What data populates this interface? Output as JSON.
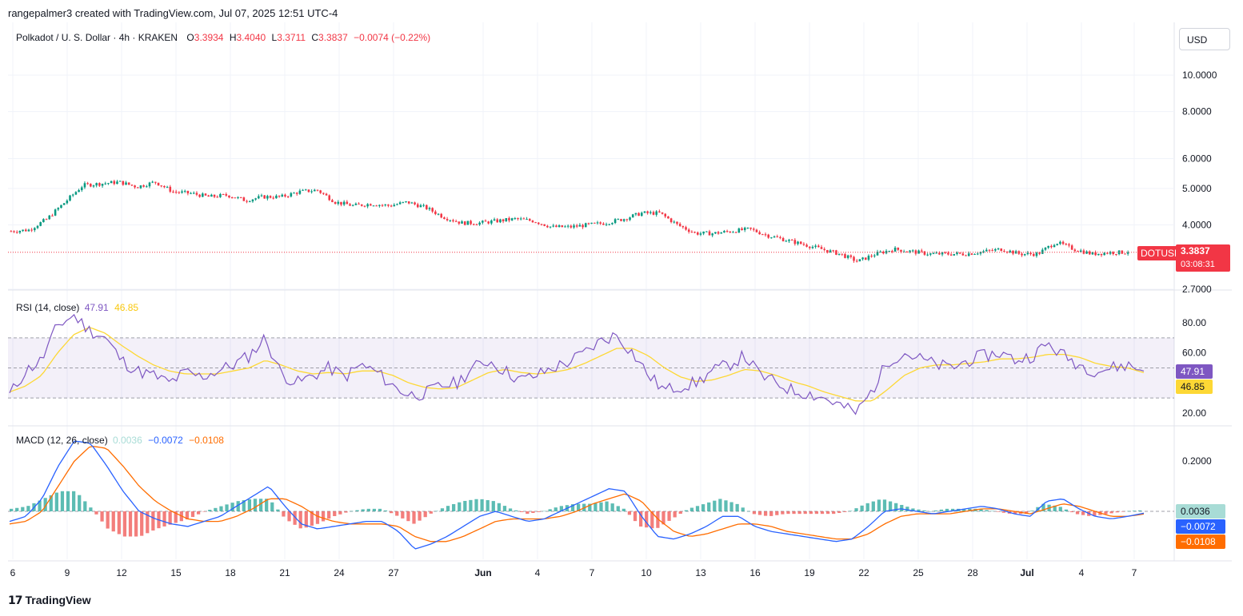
{
  "header": {
    "attribution": "rangepalmer3 created with TradingView.com, Jul 07, 2025 12:51 UTC-4"
  },
  "currency_button": "USD",
  "ticker": {
    "title": "Polkadot / U. S. Dollar · 4h · KRAKEN",
    "o_label": "O",
    "o_value": "3.3934",
    "h_label": "H",
    "h_value": "3.4040",
    "l_label": "L",
    "l_value": "3.3711",
    "c_label": "C",
    "c_value": "3.3837",
    "change": "−0.0074 (−0.22%)",
    "symbol_tag": "DOTUSD",
    "last_price": "3.3837",
    "countdown": "03:08:31"
  },
  "rsi_legend": {
    "name": "RSI (14, close)",
    "rsi": "47.91",
    "ma": "46.85"
  },
  "macd_legend": {
    "name": "MACD (12, 26, close)",
    "hist": "0.0036",
    "macd": "−0.0072",
    "signal": "−0.0108"
  },
  "colors": {
    "up": "#089981",
    "down": "#f23645",
    "rsi_line": "#7e57c2",
    "rsi_ma": "#fdd835",
    "macd_line": "#2962ff",
    "signal_line": "#ff6d00",
    "hist_up": "#26a69a",
    "hist_down": "#ef5350"
  },
  "footer": {
    "brand": "TradingView",
    "logo_icon": "tradingview-logo-icon"
  },
  "chart_data": [
    {
      "type": "candlestick",
      "title": "Polkadot / U. S. Dollar · 4h · KRAKEN",
      "y_scale": "log",
      "y_ticks": [
        "10.0000",
        "8.0000",
        "6.0000",
        "5.0000",
        "4.0000",
        "2.7000"
      ],
      "x_ticks": [
        "6",
        "9",
        "12",
        "15",
        "18",
        "21",
        "24",
        "27",
        "Jun",
        "4",
        "7",
        "10",
        "13",
        "16",
        "19",
        "22",
        "25",
        "28",
        "Jul",
        "4",
        "7"
      ],
      "approx_close_path": [
        [
          "May 6",
          3.85
        ],
        [
          "May 7",
          3.88
        ],
        [
          "May 8",
          4.15
        ],
        [
          "May 9",
          4.6
        ],
        [
          "May 10",
          5.1
        ],
        [
          "May 11",
          5.15
        ],
        [
          "May 12",
          5.2
        ],
        [
          "May 13",
          5.05
        ],
        [
          "May 14",
          5.2
        ],
        [
          "May 15",
          4.9
        ],
        [
          "May 16",
          4.85
        ],
        [
          "May 17",
          4.75
        ],
        [
          "May 18",
          4.8
        ],
        [
          "May 19",
          4.65
        ],
        [
          "May 20",
          4.75
        ],
        [
          "May 21",
          4.75
        ],
        [
          "May 22",
          4.9
        ],
        [
          "May 23",
          4.95
        ],
        [
          "May 24",
          4.6
        ],
        [
          "May 25",
          4.5
        ],
        [
          "May 26",
          4.55
        ],
        [
          "May 27",
          4.5
        ],
        [
          "May 28",
          4.6
        ],
        [
          "May 29",
          4.45
        ],
        [
          "May 30",
          4.2
        ],
        [
          "May 31",
          4.05
        ],
        [
          "Jun 1",
          4.05
        ],
        [
          "Jun 2",
          4.1
        ],
        [
          "Jun 3",
          4.15
        ],
        [
          "Jun 4",
          4.1
        ],
        [
          "Jun 5",
          3.95
        ],
        [
          "Jun 6",
          3.95
        ],
        [
          "Jun 7",
          4.0
        ],
        [
          "Jun 8",
          4.05
        ],
        [
          "Jun 9",
          4.15
        ],
        [
          "Jun 10",
          4.3
        ],
        [
          "Jun 11",
          4.3
        ],
        [
          "Jun 12",
          4.0
        ],
        [
          "Jun 13",
          3.8
        ],
        [
          "Jun 14",
          3.8
        ],
        [
          "Jun 15",
          3.85
        ],
        [
          "Jun 16",
          3.9
        ],
        [
          "Jun 17",
          3.75
        ],
        [
          "Jun 18",
          3.65
        ],
        [
          "Jun 19",
          3.55
        ],
        [
          "Jun 20",
          3.45
        ],
        [
          "Jun 21",
          3.35
        ],
        [
          "Jun 22",
          3.2
        ],
        [
          "Jun 23",
          3.35
        ],
        [
          "Jun 24",
          3.45
        ],
        [
          "Jun 25",
          3.4
        ],
        [
          "Jun 26",
          3.35
        ],
        [
          "Jun 27",
          3.35
        ],
        [
          "Jun 28",
          3.35
        ],
        [
          "Jun 29",
          3.4
        ],
        [
          "Jun 30",
          3.45
        ],
        [
          "Jul 1",
          3.35
        ],
        [
          "Jul 2",
          3.35
        ],
        [
          "Jul 3",
          3.6
        ],
        [
          "Jul 4",
          3.45
        ],
        [
          "Jul 5",
          3.35
        ],
        [
          "Jul 6",
          3.38
        ],
        [
          "Jul 7",
          3.3837
        ]
      ],
      "last": 3.3837
    },
    {
      "type": "line",
      "title": "RSI (14, close)",
      "y_ticks": [
        "80.00",
        "60.00",
        "20.00"
      ],
      "bands": [
        30,
        70
      ],
      "series": [
        {
          "name": "RSI",
          "values": [
            32,
            48,
            55,
            78,
            85,
            75,
            70,
            55,
            48,
            45,
            40,
            47,
            44,
            48,
            52,
            58,
            70,
            46,
            40,
            45,
            50,
            44,
            52,
            47,
            38,
            32,
            33,
            38,
            40,
            50,
            55,
            48,
            42,
            45,
            50,
            54,
            60,
            68,
            72,
            60,
            45,
            35,
            38,
            40,
            48,
            52,
            58,
            45,
            40,
            35,
            33,
            30,
            25,
            20,
            35,
            55,
            60,
            56,
            52,
            50,
            55,
            58,
            60,
            55,
            58,
            66,
            58,
            52,
            48,
            50,
            52,
            47.91
          ]
        },
        {
          "name": "MA",
          "values": [
            34,
            38,
            45,
            60,
            72,
            77,
            73,
            65,
            58,
            52,
            48,
            46,
            46,
            46,
            48,
            50,
            55,
            52,
            48,
            46,
            47,
            46,
            48,
            48,
            45,
            40,
            37,
            36,
            37,
            42,
            47,
            49,
            47,
            46,
            47,
            49,
            53,
            58,
            63,
            63,
            58,
            50,
            44,
            41,
            42,
            45,
            49,
            48,
            45,
            41,
            38,
            34,
            31,
            28,
            28,
            36,
            45,
            50,
            52,
            52,
            53,
            54,
            56,
            56,
            57,
            59,
            59,
            57,
            53,
            51,
            50,
            46.85
          ]
        }
      ],
      "last_rsi": 47.91,
      "last_ma": 46.85
    },
    {
      "type": "line",
      "title": "MACD (12, 26, close)",
      "y_ticks": [
        "0.2000"
      ],
      "series": [
        {
          "name": "MACD",
          "values": [
            -0.04,
            -0.02,
            0.05,
            0.18,
            0.28,
            0.27,
            0.18,
            0.08,
            0.0,
            -0.03,
            -0.05,
            -0.06,
            -0.04,
            -0.02,
            0.02,
            0.06,
            0.1,
            0.02,
            -0.05,
            -0.07,
            -0.06,
            -0.05,
            -0.04,
            -0.04,
            -0.08,
            -0.15,
            -0.13,
            -0.1,
            -0.06,
            -0.02,
            0.0,
            -0.02,
            -0.04,
            -0.03,
            0.0,
            0.03,
            0.06,
            0.09,
            0.08,
            -0.02,
            -0.1,
            -0.11,
            -0.09,
            -0.06,
            -0.02,
            -0.02,
            -0.06,
            -0.08,
            -0.09,
            -0.1,
            -0.11,
            -0.12,
            -0.11,
            -0.06,
            0.0,
            0.01,
            0.0,
            -0.01,
            0.0,
            0.01,
            0.02,
            0.01,
            -0.01,
            -0.02,
            0.04,
            0.05,
            0.01,
            -0.02,
            -0.03,
            -0.02,
            -0.0072
          ]
        },
        {
          "name": "Signal",
          "values": [
            -0.05,
            -0.04,
            0.0,
            0.1,
            0.2,
            0.26,
            0.25,
            0.18,
            0.1,
            0.04,
            0.0,
            -0.03,
            -0.04,
            -0.04,
            -0.02,
            0.01,
            0.05,
            0.05,
            0.02,
            -0.02,
            -0.04,
            -0.05,
            -0.05,
            -0.05,
            -0.06,
            -0.1,
            -0.12,
            -0.12,
            -0.1,
            -0.07,
            -0.04,
            -0.03,
            -0.03,
            -0.03,
            -0.02,
            0.0,
            0.03,
            0.05,
            0.07,
            0.04,
            -0.03,
            -0.08,
            -0.1,
            -0.09,
            -0.07,
            -0.05,
            -0.05,
            -0.06,
            -0.08,
            -0.09,
            -0.1,
            -0.11,
            -0.11,
            -0.09,
            -0.05,
            -0.02,
            -0.01,
            -0.01,
            -0.01,
            0.0,
            0.01,
            0.01,
            0.0,
            -0.01,
            0.01,
            0.03,
            0.02,
            0.0,
            -0.02,
            -0.02,
            -0.0108
          ]
        }
      ],
      "last_hist": 0.0036,
      "last_macd": -0.0072,
      "last_signal": -0.0108
    }
  ]
}
